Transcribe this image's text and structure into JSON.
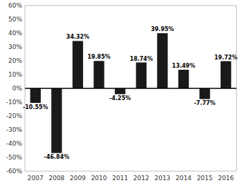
{
  "chart_data": {
    "type": "bar",
    "categories": [
      "2007",
      "2008",
      "2009",
      "2010",
      "2011",
      "2012",
      "2013",
      "2014",
      "2015",
      "2016"
    ],
    "values": [
      -10.55,
      -46.84,
      34.32,
      19.85,
      -4.25,
      18.74,
      39.95,
      13.49,
      -7.77,
      19.72
    ],
    "value_labels": [
      "-10.55%",
      "-46.84%",
      "34.32%",
      "19.85%",
      "-4.25%",
      "18.74%",
      "39.95%",
      "13.49%",
      "-7.77%",
      "19.72%"
    ],
    "color": "#1a1a1a",
    "ylim": [
      -60,
      60
    ],
    "yticks": [
      {
        "value": -60,
        "label": "-60%"
      },
      {
        "value": -50,
        "label": "-50%"
      },
      {
        "value": -40,
        "label": "-40%"
      },
      {
        "value": -30,
        "label": "-30%"
      },
      {
        "value": -20,
        "label": "-20%"
      },
      {
        "value": -10,
        "label": "-10%"
      },
      {
        "value": 0,
        "label": "0%"
      },
      {
        "value": 10,
        "label": "10%"
      },
      {
        "value": 20,
        "label": "20%"
      },
      {
        "value": 30,
        "label": "30%"
      },
      {
        "value": 40,
        "label": "40%"
      },
      {
        "value": 50,
        "label": "50%"
      },
      {
        "value": 60,
        "label": "60%"
      }
    ],
    "data_labels": true,
    "grid": false
  }
}
